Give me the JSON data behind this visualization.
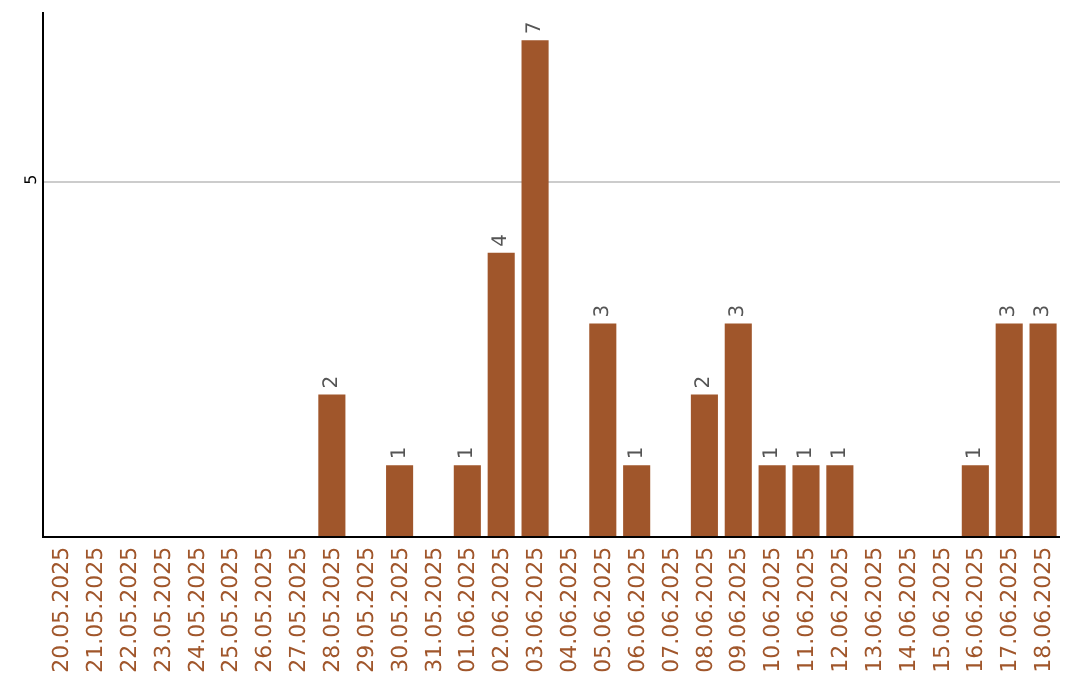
{
  "chart_data": {
    "type": "bar",
    "categories": [
      "20.05.2025",
      "21.05.2025",
      "22.05.2025",
      "23.05.2025",
      "24.05.2025",
      "25.05.2025",
      "26.05.2025",
      "27.05.2025",
      "28.05.2025",
      "29.05.2025",
      "30.05.2025",
      "31.05.2025",
      "01.06.2025",
      "02.06.2025",
      "03.06.2025",
      "04.06.2025",
      "05.06.2025",
      "06.06.2025",
      "07.06.2025",
      "08.06.2025",
      "09.06.2025",
      "10.06.2025",
      "11.06.2025",
      "12.06.2025",
      "13.06.2025",
      "14.06.2025",
      "15.06.2025",
      "16.06.2025",
      "17.06.2025",
      "18.06.2025"
    ],
    "values": [
      0,
      0,
      0,
      0,
      0,
      0,
      0,
      0,
      2,
      0,
      1,
      0,
      1,
      4,
      7,
      0,
      3,
      1,
      0,
      2,
      3,
      1,
      1,
      1,
      0,
      0,
      0,
      1,
      3,
      3
    ],
    "value_labels": [
      null,
      null,
      null,
      null,
      null,
      null,
      null,
      null,
      "2",
      null,
      "1",
      null,
      "1",
      "4",
      "7",
      null,
      "3",
      "1",
      null,
      "2",
      "3",
      "1",
      "1",
      "1",
      null,
      null,
      null,
      "1",
      "3",
      "3"
    ],
    "color": "#a0562b",
    "ylim": [
      0,
      7.4
    ],
    "yticks": [
      5
    ],
    "grid": "y"
  }
}
